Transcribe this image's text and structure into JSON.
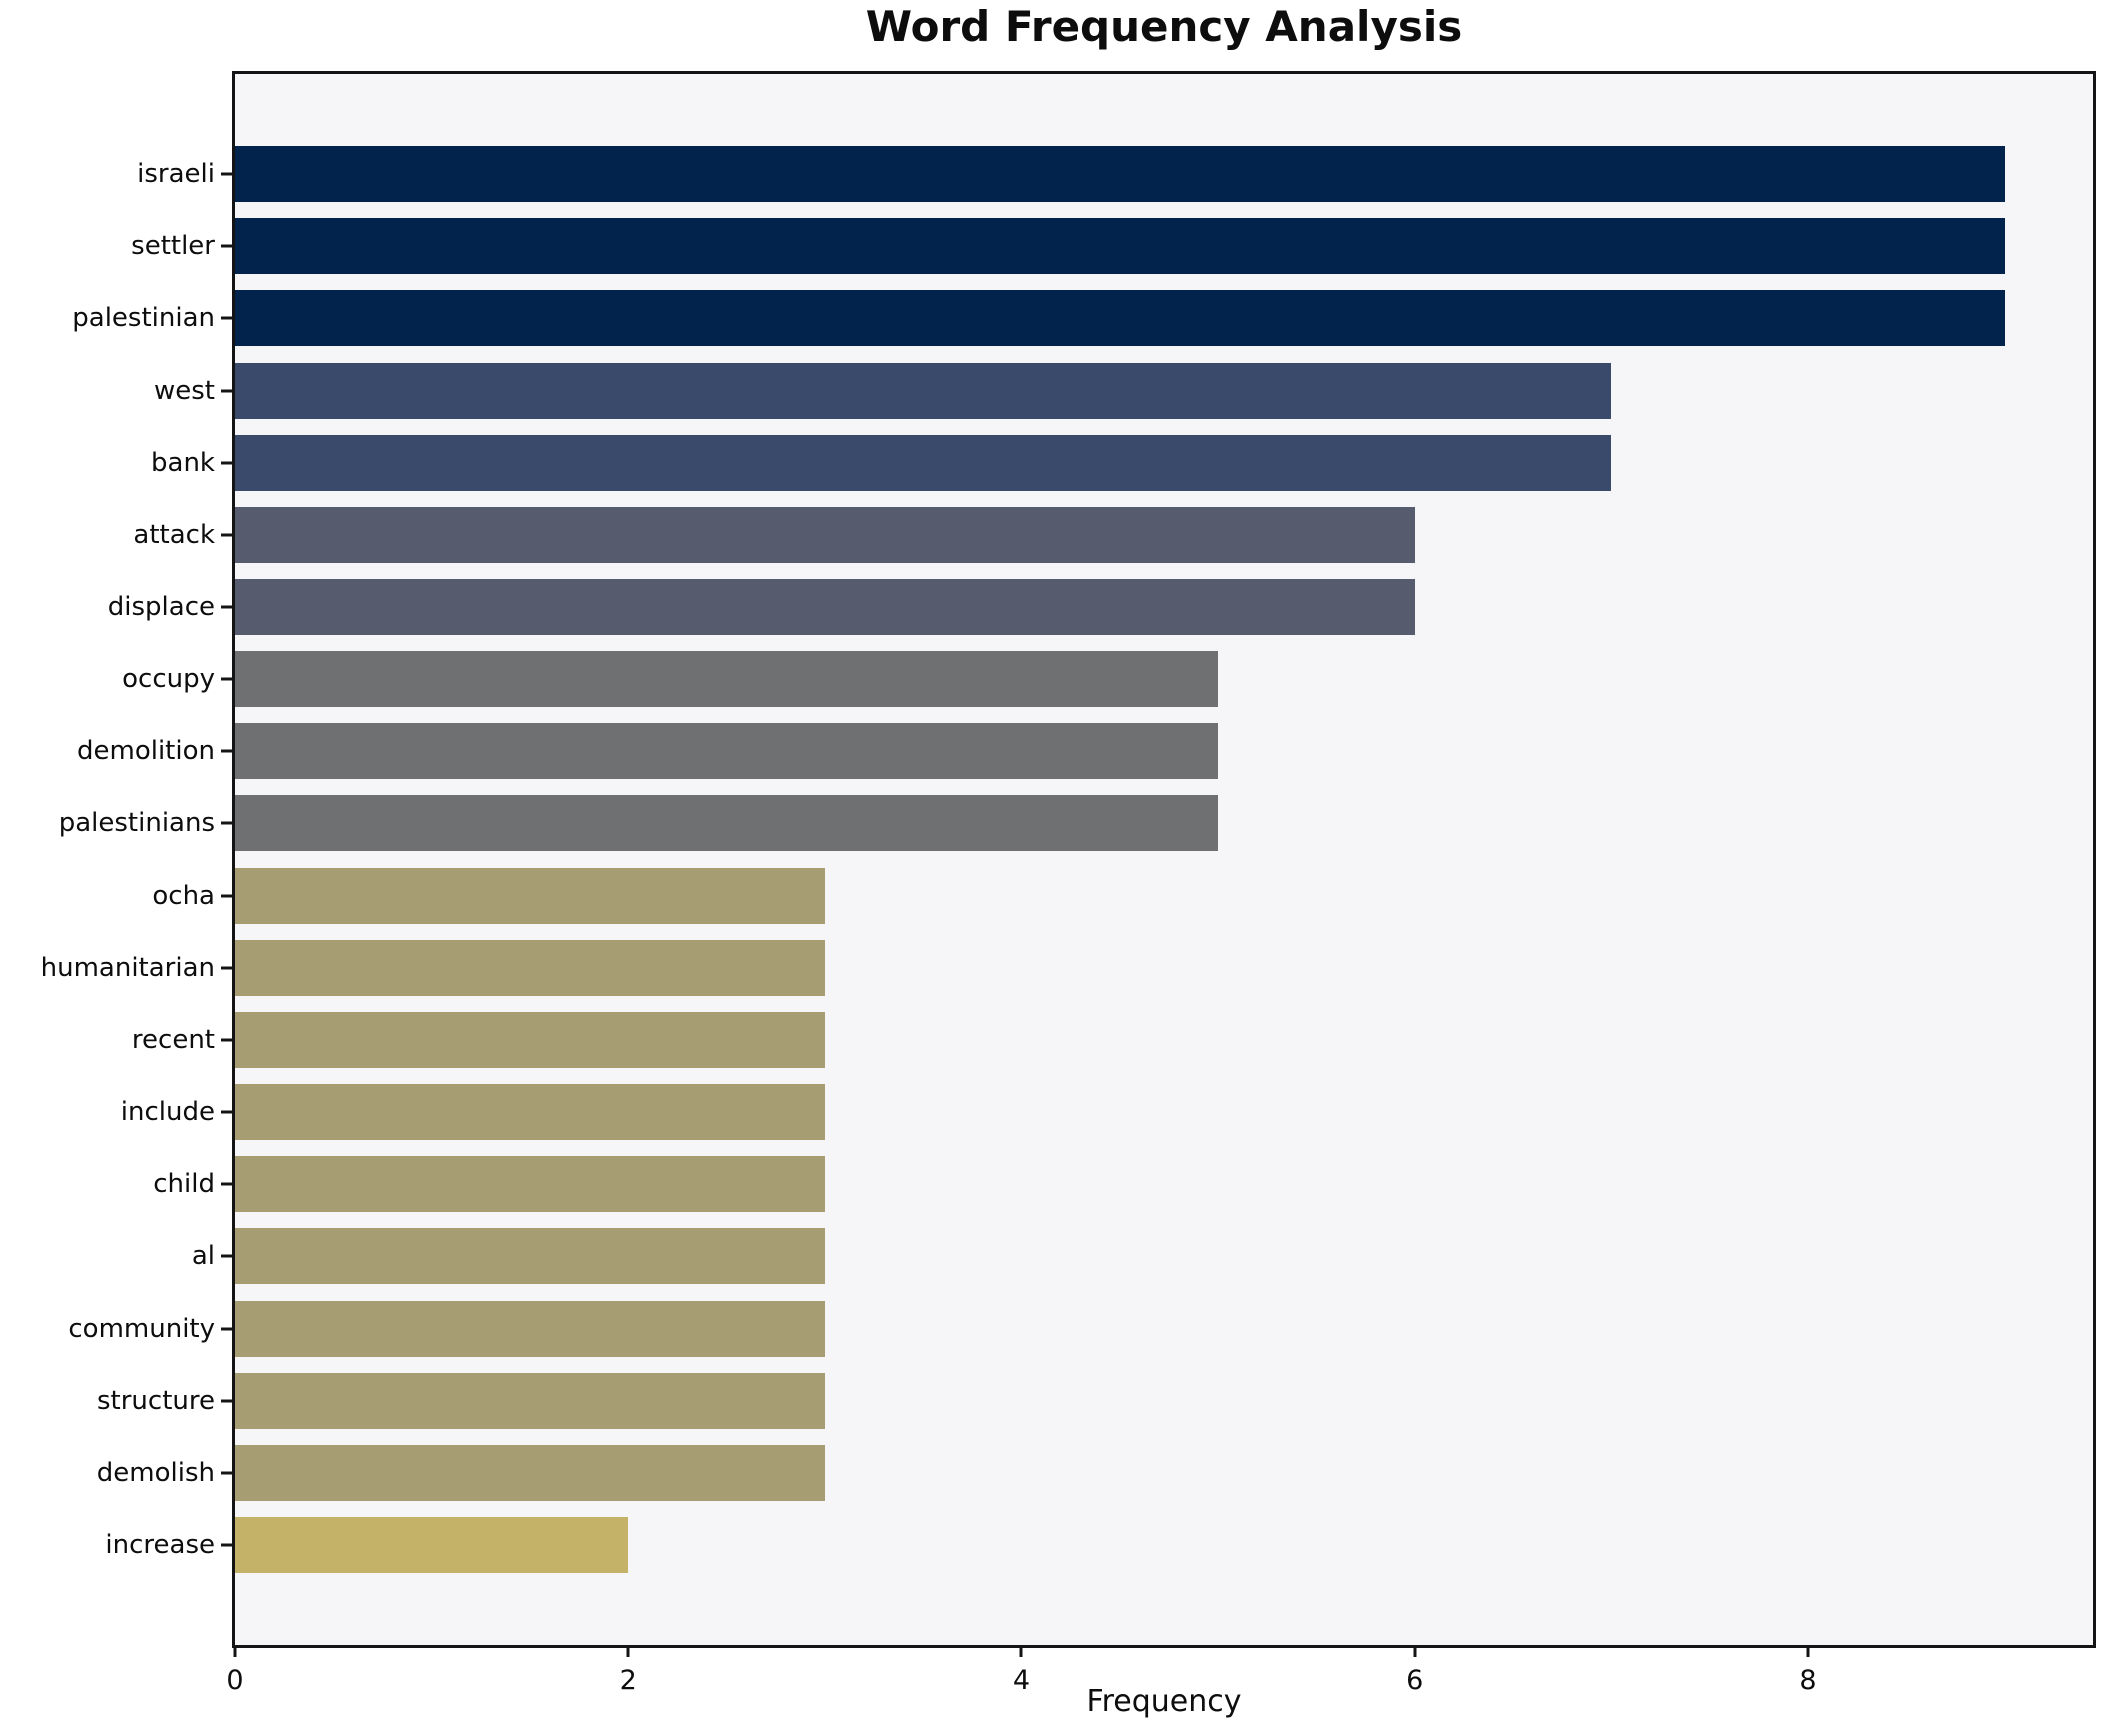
{
  "chart_data": {
    "type": "bar",
    "orientation": "horizontal",
    "title": "Word Frequency Analysis",
    "xlabel": "Frequency",
    "ylabel": "",
    "categories": [
      "israeli",
      "settler",
      "palestinian",
      "west",
      "bank",
      "attack",
      "displace",
      "occupy",
      "demolition",
      "palestinians",
      "ocha",
      "humanitarian",
      "recent",
      "include",
      "child",
      "al",
      "community",
      "structure",
      "demolish",
      "increase"
    ],
    "values": [
      9,
      9,
      9,
      7,
      7,
      6,
      6,
      5,
      5,
      5,
      3,
      3,
      3,
      3,
      3,
      3,
      3,
      3,
      3,
      2
    ],
    "bar_colors": [
      "#02234c",
      "#02234c",
      "#02234c",
      "#3a4a6b",
      "#3a4a6b",
      "#565c6d",
      "#565c6d",
      "#6f7071",
      "#6f7071",
      "#6f7071",
      "#a69d72",
      "#a69d72",
      "#a69d72",
      "#a69d72",
      "#a69d72",
      "#a69d72",
      "#a69d72",
      "#a69d72",
      "#a69d72",
      "#c3b268"
    ],
    "xlim": [
      0,
      9.45
    ],
    "xticks": [
      0,
      2,
      4,
      6,
      8
    ],
    "grid": false,
    "legend": false,
    "bar_height_fraction": 0.8,
    "plot_background": "#f6f6f8",
    "figure_background": "#ffffff",
    "spine_color": "#141414"
  }
}
